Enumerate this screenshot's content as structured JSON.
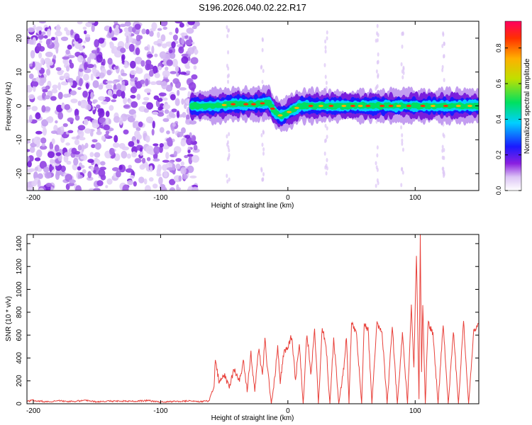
{
  "title": "S196.2026.040.02.22.R17",
  "chart_data": [
    {
      "type": "heatmap",
      "xlabel": "Height of straight line (km)",
      "ylabel": "Frequency (Hz)",
      "xlim": [
        -205,
        150
      ],
      "ylim": [
        -25,
        25
      ],
      "xticks": [
        -200,
        -100,
        0,
        100
      ],
      "yticks": [
        -20,
        -10,
        0,
        10,
        20
      ],
      "colorbar": {
        "label": "Normalized spectral amplitude",
        "range": [
          0,
          0.95
        ],
        "ticks": [
          0.0,
          0.2,
          0.4,
          0.6,
          0.8
        ],
        "tick_labels": [
          "0.0",
          "0.2",
          "0.4",
          "0.6",
          "0.8"
        ]
      },
      "ridge": {
        "x": [
          -75,
          -65,
          -55,
          -45,
          -35,
          -25,
          -15,
          -10,
          -5,
          0,
          10,
          20,
          30,
          40,
          50,
          60,
          70,
          80,
          90,
          100,
          110,
          120,
          130,
          140,
          150
        ],
        "freq": [
          0,
          0,
          0,
          0.5,
          0.5,
          0.5,
          1,
          -2,
          -3,
          -2,
          0,
          0,
          0,
          0,
          0,
          0,
          0,
          0,
          0,
          0,
          0,
          0,
          0,
          0,
          0
        ]
      }
    },
    {
      "type": "line",
      "xlabel": "Height of straight line (km)",
      "ylabel": "SNR (10 * v/v)",
      "xlim": [
        -205,
        150
      ],
      "ylim": [
        0,
        1480
      ],
      "xticks": [
        -200,
        -100,
        0,
        100
      ],
      "yticks": [
        0,
        200,
        400,
        600,
        800,
        1000,
        1200,
        1400
      ],
      "series": [
        {
          "name": "SNR",
          "color": "#e8403a",
          "x": [
            -205,
            -200,
            -190,
            -180,
            -170,
            -160,
            -150,
            -140,
            -130,
            -120,
            -110,
            -100,
            -90,
            -80,
            -70,
            -62,
            -58,
            -57,
            -54,
            -50,
            -46,
            -42,
            -38,
            -35,
            -32,
            -29,
            -26,
            -23,
            -20,
            -18,
            -16,
            -13,
            -10,
            -8,
            -6,
            -3,
            0,
            3,
            6,
            9,
            12,
            15,
            18,
            21,
            24,
            27,
            30,
            33,
            36,
            40,
            44,
            46,
            48,
            50,
            54,
            58,
            60,
            63,
            66,
            70,
            74,
            78,
            82,
            86,
            90,
            94,
            97,
            99,
            101,
            103,
            104,
            105,
            106,
            108,
            110,
            114,
            118,
            122,
            126,
            130,
            134,
            138,
            142,
            146,
            150
          ],
          "y": [
            20,
            30,
            18,
            25,
            20,
            28,
            18,
            22,
            25,
            20,
            28,
            15,
            20,
            25,
            18,
            25,
            140,
            400,
            180,
            250,
            150,
            300,
            200,
            380,
            120,
            450,
            100,
            480,
            250,
            560,
            300,
            0,
            250,
            520,
            200,
            450,
            480,
            600,
            200,
            550,
            0,
            620,
            260,
            650,
            0,
            660,
            520,
            0,
            580,
            0,
            320,
            600,
            0,
            700,
            600,
            0,
            700,
            650,
            0,
            700,
            620,
            0,
            680,
            0,
            620,
            0,
            850,
            300,
            1320,
            50,
            1480,
            300,
            850,
            0,
            700,
            620,
            0,
            690,
            0,
            650,
            0,
            720,
            0,
            620,
            700
          ]
        }
      ]
    }
  ]
}
